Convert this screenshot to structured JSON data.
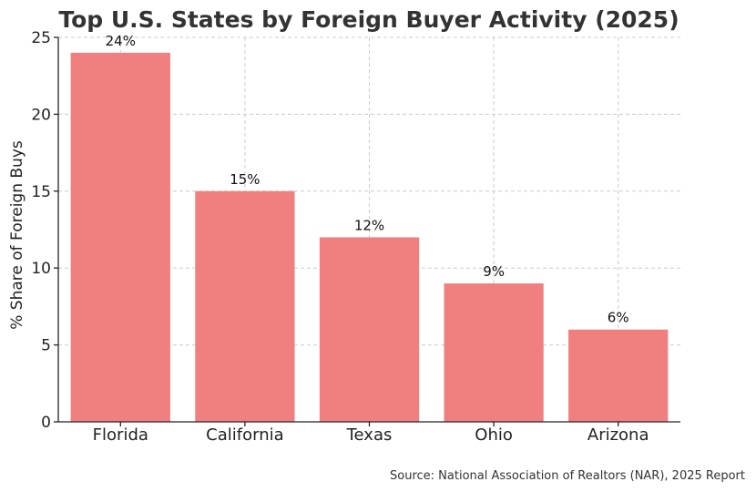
{
  "chart_data": {
    "type": "bar",
    "title": "Top U.S. States by Foreign Buyer Activity (2025)",
    "xlabel": "",
    "ylabel": "% Share of Foreign Buys",
    "categories": [
      "Florida",
      "California",
      "Texas",
      "Ohio",
      "Arizona"
    ],
    "values": [
      24,
      15,
      12,
      9,
      6
    ],
    "data_labels": [
      "24%",
      "15%",
      "12%",
      "9%",
      "6%"
    ],
    "ylim": [
      0,
      25
    ],
    "yticks": [
      0,
      5,
      10,
      15,
      20,
      25
    ],
    "grid": true,
    "bar_color": "#f08080",
    "source": "Source: National Association of Realtors (NAR), 2025 Report"
  }
}
